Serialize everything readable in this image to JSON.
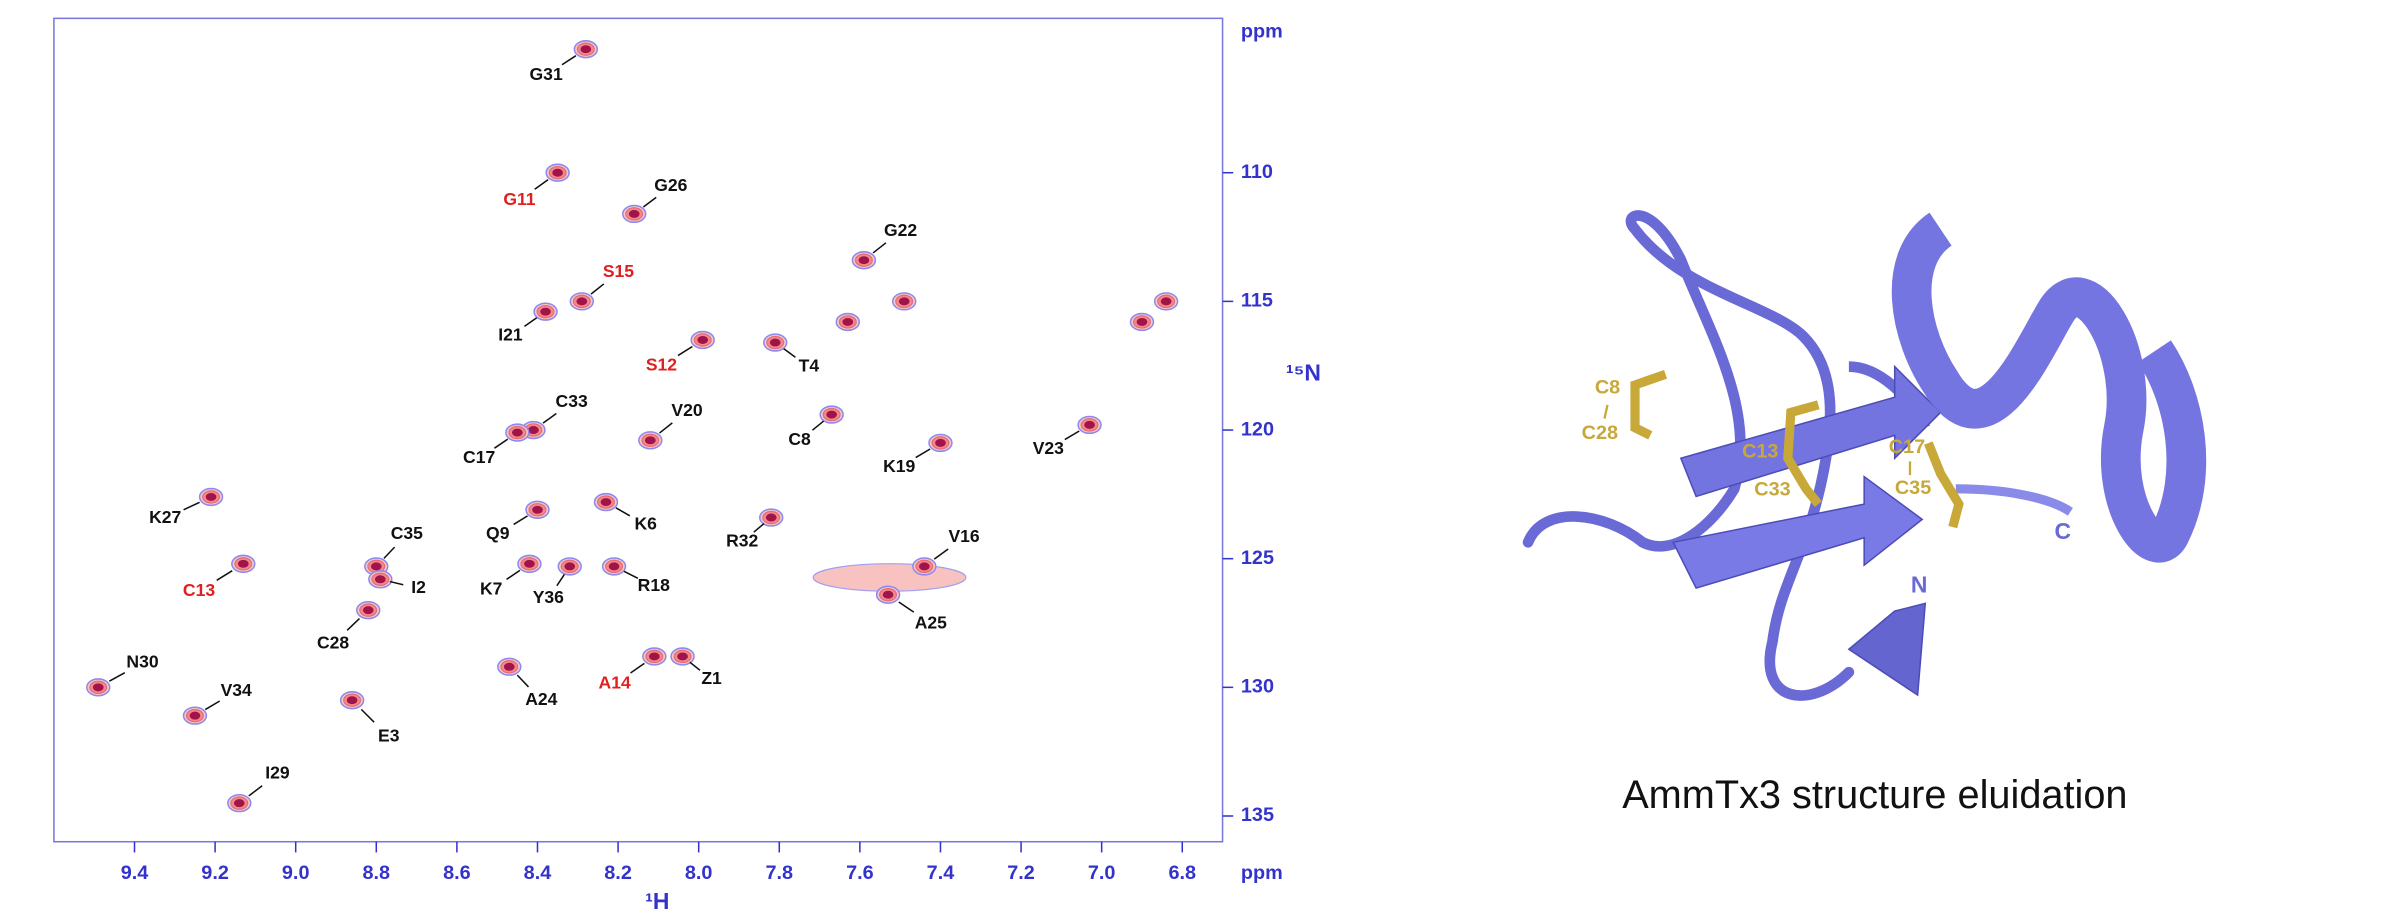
{
  "chart_data": {
    "type": "scatter",
    "x_label": "¹H",
    "y_label": "¹⁵N",
    "x_unit": "ppm",
    "y_unit": "ppm",
    "xlim": [
      9.6,
      6.7
    ],
    "ylim": [
      104,
      136
    ],
    "xticks": [
      {
        "value": 9.4,
        "label": "9.4"
      },
      {
        "value": 9.2,
        "label": "9.2"
      },
      {
        "value": 9.0,
        "label": "9.0"
      },
      {
        "value": 8.8,
        "label": "8.8"
      },
      {
        "value": 8.6,
        "label": "8.6"
      },
      {
        "value": 8.4,
        "label": "8.4"
      },
      {
        "value": 8.2,
        "label": "8.2"
      },
      {
        "value": 8.0,
        "label": "8.0"
      },
      {
        "value": 7.8,
        "label": "7.8"
      },
      {
        "value": 7.6,
        "label": "7.6"
      },
      {
        "value": 7.4,
        "label": "7.4"
      },
      {
        "value": 7.2,
        "label": "7.2"
      },
      {
        "value": 7.0,
        "label": "7.0"
      },
      {
        "value": 6.8,
        "label": "6.8"
      }
    ],
    "yticks": [
      110,
      115,
      120,
      125,
      130,
      135
    ],
    "axis_color": "#3333cc",
    "peak_color": "#a0144a",
    "points": [
      {
        "label": "G31",
        "x": 8.28,
        "y": 105.2,
        "color": "#111111"
      },
      {
        "label": "G11",
        "x": 8.35,
        "y": 110.0,
        "color": "#e0201e"
      },
      {
        "label": "G26",
        "x": 8.16,
        "y": 111.6,
        "color": "#111111"
      },
      {
        "label": "G22",
        "x": 7.59,
        "y": 113.4,
        "color": "#111111"
      },
      {
        "label": "S15",
        "x": 8.29,
        "y": 115.0,
        "color": "#e0201e"
      },
      {
        "label": "I21",
        "x": 8.38,
        "y": 115.4,
        "color": "#111111"
      },
      {
        "label": null,
        "x": 7.49,
        "y": 115.0,
        "color": "#111111"
      },
      {
        "label": null,
        "x": 7.63,
        "y": 115.8,
        "color": "#111111"
      },
      {
        "label": null,
        "x": 6.84,
        "y": 115.0,
        "color": "#111111"
      },
      {
        "label": null,
        "x": 6.9,
        "y": 115.8,
        "color": "#111111"
      },
      {
        "label": "S12",
        "x": 7.99,
        "y": 116.5,
        "color": "#e0201e"
      },
      {
        "label": "T4",
        "x": 7.81,
        "y": 116.6,
        "color": "#111111"
      },
      {
        "label": "C33",
        "x": 8.41,
        "y": 120.0,
        "color": "#111111"
      },
      {
        "label": "C17",
        "x": 8.45,
        "y": 120.1,
        "color": "#111111"
      },
      {
        "label": "V20",
        "x": 8.12,
        "y": 120.4,
        "color": "#111111"
      },
      {
        "label": "C8",
        "x": 7.67,
        "y": 119.4,
        "color": "#111111"
      },
      {
        "label": "K19",
        "x": 7.4,
        "y": 120.5,
        "color": "#111111"
      },
      {
        "label": "V23",
        "x": 7.03,
        "y": 119.8,
        "color": "#111111"
      },
      {
        "label": "K27",
        "x": 9.21,
        "y": 122.6,
        "color": "#111111"
      },
      {
        "label": "Q9",
        "x": 8.4,
        "y": 123.1,
        "color": "#111111"
      },
      {
        "label": "K6",
        "x": 8.23,
        "y": 122.8,
        "color": "#111111"
      },
      {
        "label": "R32",
        "x": 7.82,
        "y": 123.4,
        "color": "#111111"
      },
      {
        "label": "V16",
        "x": 7.44,
        "y": 125.3,
        "color": "#111111"
      },
      {
        "label": "A25",
        "x": 7.53,
        "y": 126.4,
        "color": "#111111"
      },
      {
        "label": "C35",
        "x": 8.8,
        "y": 125.3,
        "color": "#111111"
      },
      {
        "label": "I2",
        "x": 8.79,
        "y": 125.8,
        "color": "#111111"
      },
      {
        "label": "C13",
        "x": 9.13,
        "y": 125.2,
        "color": "#e0201e"
      },
      {
        "label": "K7",
        "x": 8.42,
        "y": 125.2,
        "color": "#111111"
      },
      {
        "label": "Y36",
        "x": 8.32,
        "y": 125.3,
        "color": "#111111"
      },
      {
        "label": "R18",
        "x": 8.21,
        "y": 125.3,
        "color": "#111111"
      },
      {
        "label": "C28",
        "x": 8.82,
        "y": 127.0,
        "color": "#111111"
      },
      {
        "label": "N30",
        "x": 9.49,
        "y": 130.0,
        "color": "#111111"
      },
      {
        "label": "V34",
        "x": 9.25,
        "y": 131.1,
        "color": "#111111"
      },
      {
        "label": "E3",
        "x": 8.86,
        "y": 130.5,
        "color": "#111111"
      },
      {
        "label": "A24",
        "x": 8.47,
        "y": 129.2,
        "color": "#111111"
      },
      {
        "label": "A14",
        "x": 8.11,
        "y": 128.8,
        "color": "#e0201e"
      },
      {
        "label": "Z1",
        "x": 8.04,
        "y": 128.8,
        "color": "#111111"
      },
      {
        "label": "I29",
        "x": 9.14,
        "y": 134.5,
        "color": "#111111"
      }
    ]
  },
  "structure": {
    "caption": "AmmTx3 structure eluidation",
    "labels": [
      "C8",
      "C28",
      "C13",
      "C33",
      "C17",
      "C35",
      "N",
      "C"
    ]
  }
}
